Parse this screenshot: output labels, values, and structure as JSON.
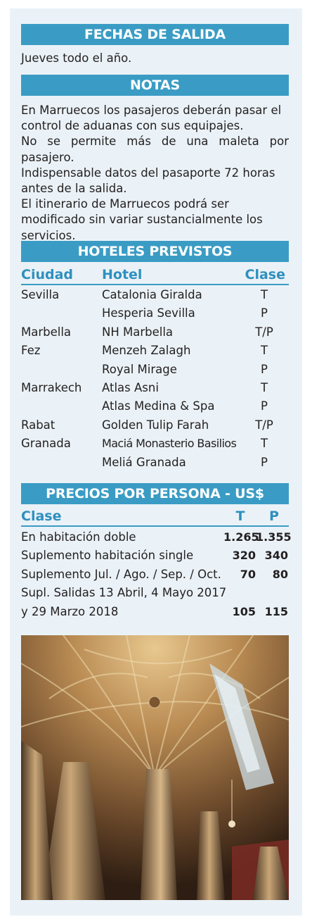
{
  "fechas": {
    "title": "FECHAS DE SALIDA",
    "text": "Jueves todo el año."
  },
  "notas": {
    "title": "NOTAS",
    "lines": [
      "En Marruecos los pasajeros deberán pasar el control de aduanas con sus equipajes.",
      "No se permite más de una maleta por pasajero.",
      "Indispensable datos del pasaporte 72 horas antes de la salida.",
      "El itinerario de Marruecos podrá ser modificado sin variar sustancialmente los servicios."
    ]
  },
  "hoteles": {
    "title": "HOTELES PREVISTOS",
    "headers": {
      "ciudad": "Ciudad",
      "hotel": "Hotel",
      "clase": "Clase"
    },
    "rows": [
      {
        "ciudad": "Sevilla",
        "hotel": "Catalonia Giralda",
        "clase": "T"
      },
      {
        "ciudad": "",
        "hotel": "Hesperia Sevilla",
        "clase": "P"
      },
      {
        "ciudad": "Marbella",
        "hotel": "NH Marbella",
        "clase": "T/P"
      },
      {
        "ciudad": "Fez",
        "hotel": "Menzeh Zalagh",
        "clase": "T"
      },
      {
        "ciudad": "",
        "hotel": "Royal Mirage",
        "clase": "P"
      },
      {
        "ciudad": "Marrakech",
        "hotel": "Atlas Asni",
        "clase": "T"
      },
      {
        "ciudad": "",
        "hotel": "Atlas Medina & Spa",
        "clase": "P"
      },
      {
        "ciudad": "Rabat",
        "hotel": "Golden Tulip Farah",
        "clase": "T/P"
      },
      {
        "ciudad": "Granada",
        "hotel": "Maciá Monasterio Basilios",
        "clase": "T"
      },
      {
        "ciudad": "",
        "hotel": "Meliá Granada",
        "clase": "P"
      }
    ]
  },
  "precios": {
    "title": "PRECIOS POR PERSONA - US$",
    "headers": {
      "clase": "Clase",
      "t": "T",
      "p": "P"
    },
    "rows": [
      {
        "label": "En habitación doble",
        "t": "1.265",
        "p": "1.355"
      },
      {
        "label": "Suplemento habitación single",
        "t": "320",
        "p": "340"
      },
      {
        "label": "Suplemento Jul. / Ago. / Sep. / Oct.",
        "t": "70",
        "p": "80"
      },
      {
        "label": "Supl. Salidas 13 Abril, 4 Mayo 2017",
        "t": "",
        "p": ""
      },
      {
        "label": "y 29 Marzo 2018",
        "t": "105",
        "p": "115"
      }
    ]
  },
  "image": {
    "icon": "cathedral-vault-photo"
  }
}
